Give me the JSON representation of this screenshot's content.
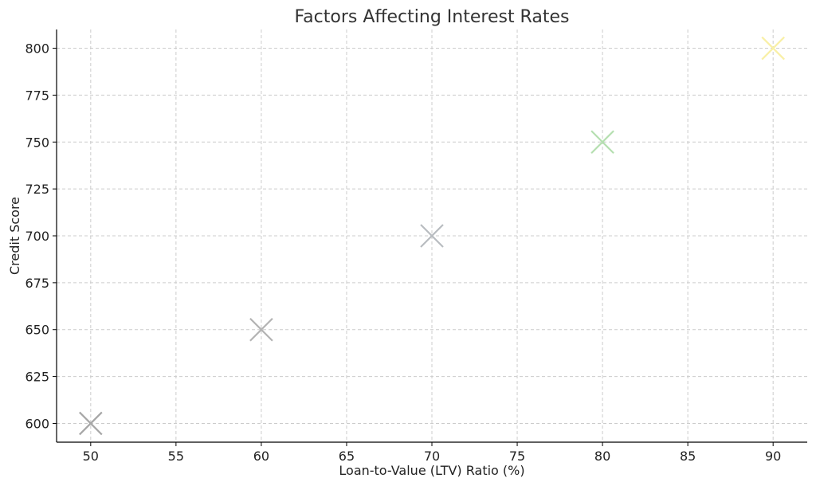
{
  "chart_data": {
    "type": "scatter",
    "title": "Factors Affecting Interest Rates",
    "xlabel": "Loan-to-Value (LTV) Ratio (%)",
    "ylabel": "Credit Score",
    "xlim": [
      48,
      92
    ],
    "ylim": [
      590,
      810
    ],
    "xticks": [
      50,
      55,
      60,
      65,
      70,
      75,
      80,
      85,
      90
    ],
    "yticks": [
      600,
      625,
      650,
      675,
      700,
      725,
      750,
      775,
      800
    ],
    "grid": true,
    "marker": "x",
    "points": [
      {
        "x": 50,
        "y": 600,
        "color": "#a6a6a6"
      },
      {
        "x": 60,
        "y": 650,
        "color": "#b3b3b3"
      },
      {
        "x": 70,
        "y": 700,
        "color": "#b8bcc0"
      },
      {
        "x": 80,
        "y": 750,
        "color": "#b5dfb0"
      },
      {
        "x": 90,
        "y": 800,
        "color": "#f9f0a6"
      }
    ]
  }
}
